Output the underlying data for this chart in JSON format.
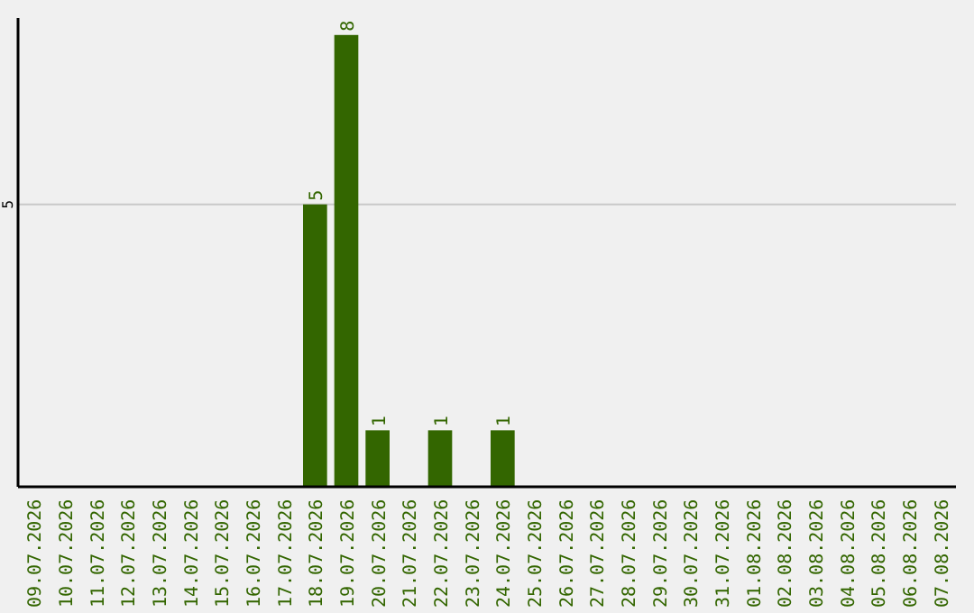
{
  "chart_data": {
    "type": "bar",
    "categories": [
      "09.07.2026",
      "10.07.2026",
      "11.07.2026",
      "12.07.2026",
      "13.07.2026",
      "14.07.2026",
      "15.07.2026",
      "16.07.2026",
      "17.07.2026",
      "18.07.2026",
      "19.07.2026",
      "20.07.2026",
      "21.07.2026",
      "22.07.2026",
      "23.07.2026",
      "24.07.2026",
      "25.07.2026",
      "26.07.2026",
      "27.07.2026",
      "28.07.2026",
      "29.07.2026",
      "30.07.2026",
      "31.07.2026",
      "01.08.2026",
      "02.08.2026",
      "03.08.2026",
      "04.08.2026",
      "05.08.2026",
      "06.08.2026",
      "07.08.2026"
    ],
    "values": [
      0,
      0,
      0,
      0,
      0,
      0,
      0,
      0,
      0,
      5,
      8,
      1,
      0,
      1,
      0,
      1,
      0,
      0,
      0,
      0,
      0,
      0,
      0,
      0,
      0,
      0,
      0,
      0,
      0,
      0
    ],
    "value_labels": [
      null,
      null,
      null,
      null,
      null,
      null,
      null,
      null,
      null,
      "5",
      "8",
      "1",
      null,
      "1",
      null,
      "1",
      null,
      null,
      null,
      null,
      null,
      null,
      null,
      null,
      null,
      null,
      null,
      null,
      null,
      null
    ],
    "color": "#336600",
    "ylim": [
      0,
      8.3
    ],
    "yticks": [
      5
    ],
    "grid": "y"
  }
}
